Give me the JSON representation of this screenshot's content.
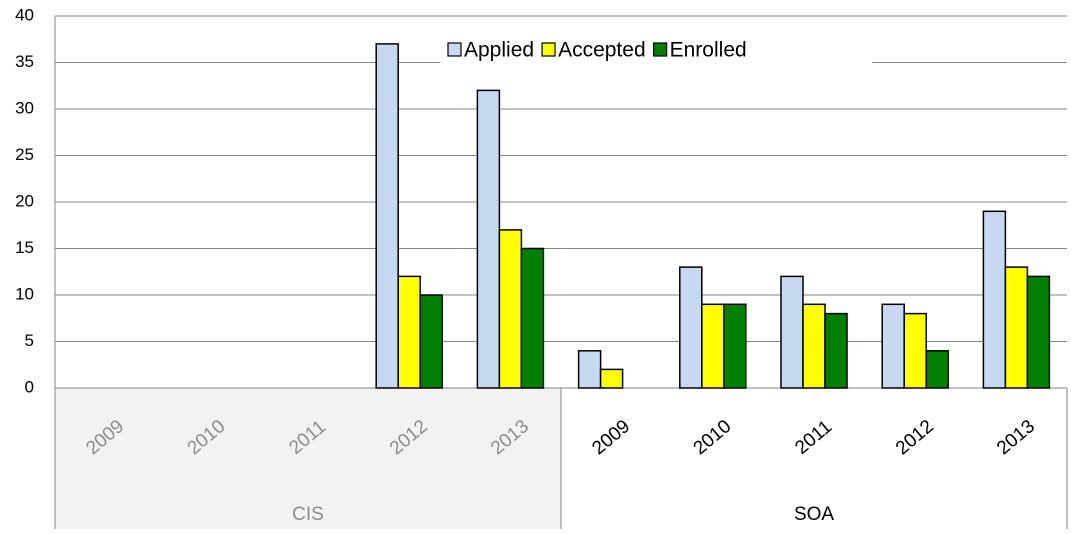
{
  "chart_data": {
    "type": "bar",
    "groups": [
      {
        "name": "CIS",
        "categories": [
          "2009",
          "2010",
          "2011",
          "2012",
          "2013"
        ]
      },
      {
        "name": "SOA",
        "categories": [
          "2009",
          "2010",
          "2011",
          "2012",
          "2013"
        ]
      }
    ],
    "series": [
      {
        "name": "Applied",
        "color": "#c6d9f1",
        "values": [
          null,
          null,
          null,
          37,
          32,
          4,
          13,
          12,
          9,
          19
        ]
      },
      {
        "name": "Accepted",
        "color": "#ffff00",
        "values": [
          null,
          null,
          null,
          12,
          17,
          2,
          9,
          9,
          8,
          13
        ]
      },
      {
        "name": "Enrolled",
        "color": "#008000",
        "values": [
          null,
          null,
          null,
          10,
          15,
          null,
          9,
          8,
          4,
          12
        ]
      }
    ],
    "ylim": [
      0,
      40
    ],
    "yticks": [
      0,
      5,
      10,
      15,
      20,
      25,
      30,
      35,
      40
    ],
    "grid": true,
    "legend": "top"
  }
}
